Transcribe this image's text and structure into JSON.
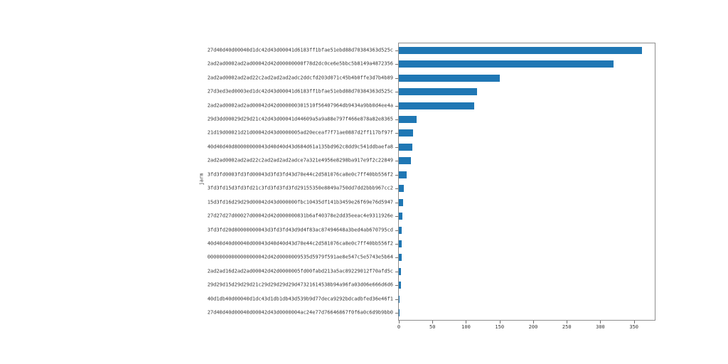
{
  "chart_data": {
    "type": "bar",
    "orientation": "horizontal",
    "title": "",
    "xlabel": "",
    "ylabel": "jarm",
    "grid": false,
    "legend_position": "none",
    "bar_color": "#1f77b4",
    "xlim": [
      0,
      381
    ],
    "xticks": [
      0,
      50,
      100,
      150,
      200,
      250,
      300,
      350
    ],
    "categories": [
      "27d40d40d00040d1dc42d43d00041d6183ff1bfae51ebd88d70384363d525c",
      "2ad2ad0002ad2ad00042d42d00000000f78d2dc0ce6e5bbc5b8149a4872356",
      "2ad2ad0002ad2ad22c2ad2ad2ad2adc2ddcfd203d071c45b4b0ffe3d7b4b89",
      "27d3ed3ed0003ed1dc42d43d00041d6183ff1bfae51ebd88d70384363d525c",
      "2ad2ad0002ad2ad00042d42d000000301510f56407964db9434a9bb0d4ee4a",
      "29d3dd00029d29d21c42d43d00041d44609a5a9a88e797f466e878a82e8365",
      "21d19d00021d21d00042d43d0000005ad20eceaf7f71ae0887d2ff117bf97f",
      "40d40d40d80000000043d40d40d43d684d61a135bd962c8dd9c541ddbaefa8",
      "2ad2ad0002ad2ad22c2ad2ad2ad2adce7a321e4956e8298ba917e9f2c22849",
      "3fd3fd0003fd3fd00043d3fd3fd43d70e44c2d581076ca8e0c7ff40bb556f2",
      "3fd3fd15d3fd3fd21c3fd3fd3fd3fd29155350e8849a750dd7dd2bbb967cc2",
      "15d3fd16d29d29d00042d43d000000fbc10435df141b3459e26f69e76d5947",
      "27d27d27d00027d00042d42d000000831b6af40378e2dd35eeac4e9311926e",
      "3fd3fd20d80000000043d3fd3fd43d9d4f83ac87494648a3bed4ab670795cd",
      "40d40d40d00040d00043d40d40d43d70e44c2d581076ca8e0c7ff40bb556f2",
      "00000000000000000042d42d0000009535d5979f591ae8e547c5e5743e5b64",
      "2ad2ad16d2ad2ad00042d42d0000005fd00fabd213a5ac89229012f70afd5c",
      "29d29d15d29d29d21c29d29d29d29d47321614538b94a96fa03d06e666d6d6",
      "40d1db40d00040d1dc43d1db1db43d539b9d77deca9292bdcadbfed36e46f1",
      "27d40d40d00040d00042d43d0000004ac24e77d76646867f0f6a0c6d9b9bb0"
    ],
    "values": [
      362,
      320,
      150,
      116,
      112,
      26,
      21,
      20,
      18,
      12,
      7,
      6,
      5,
      4,
      4,
      4,
      3,
      3,
      1,
      1
    ]
  }
}
